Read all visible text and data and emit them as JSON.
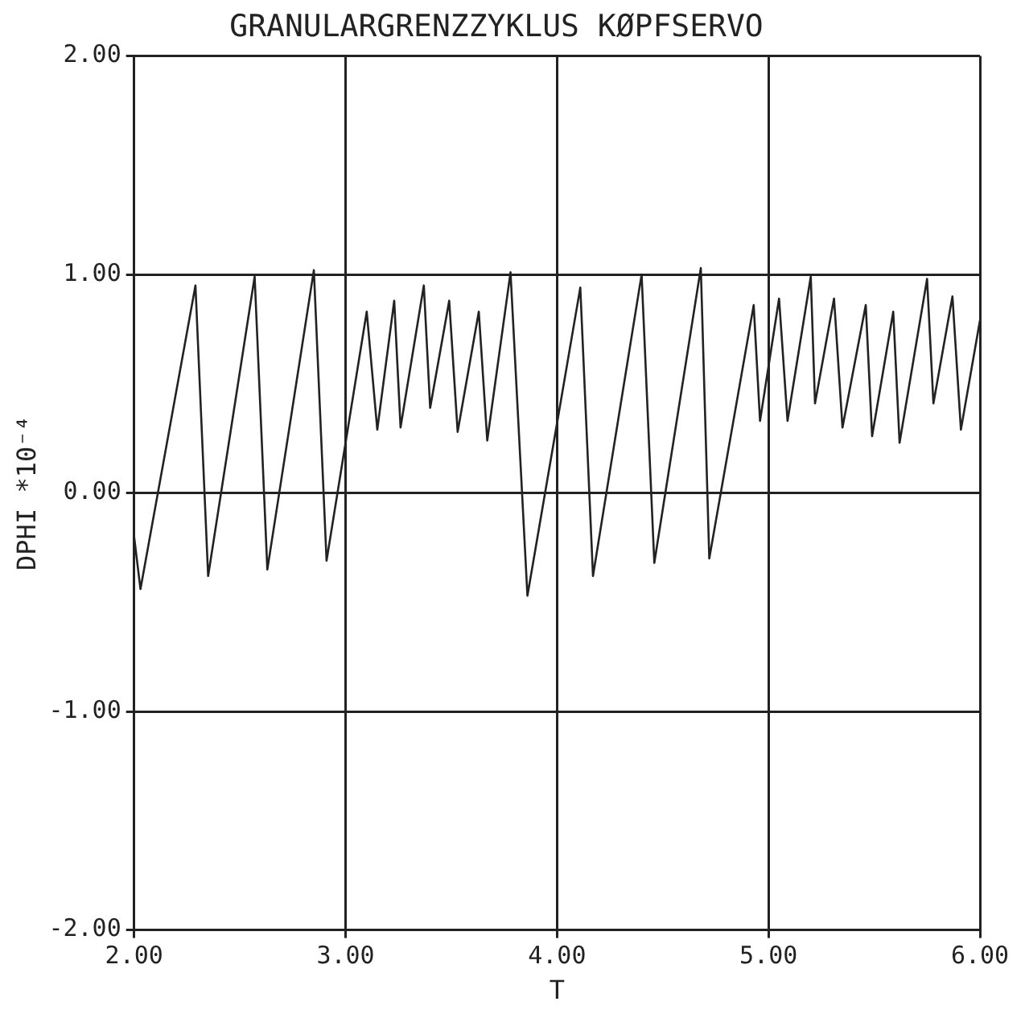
{
  "chart_data": {
    "type": "line",
    "title": "GRANULARGRENZZYKLUS KØPFSERVO",
    "xlabel": "T",
    "ylabel": "DPHI *10⁻⁴",
    "x": [
      2.0,
      2.03,
      2.29,
      2.35,
      2.57,
      2.63,
      2.85,
      2.91,
      3.1,
      3.15,
      3.23,
      3.26,
      3.37,
      3.4,
      3.49,
      3.53,
      3.63,
      3.67,
      3.78,
      3.86,
      4.11,
      4.17,
      4.4,
      4.46,
      4.68,
      4.72,
      4.93,
      4.96,
      5.05,
      5.09,
      5.2,
      5.22,
      5.31,
      5.35,
      5.46,
      5.49,
      5.59,
      5.62,
      5.75,
      5.78,
      5.87,
      5.91,
      6.0
    ],
    "series": [
      {
        "color": "#222222",
        "values": [
          -0.2,
          -0.44,
          0.95,
          -0.38,
          0.99,
          -0.35,
          1.02,
          -0.31,
          0.83,
          0.29,
          0.88,
          0.3,
          0.95,
          0.39,
          0.88,
          0.28,
          0.83,
          0.24,
          1.01,
          -0.47,
          0.94,
          -0.38,
          1.0,
          -0.32,
          1.03,
          -0.3,
          0.86,
          0.33,
          0.89,
          0.33,
          0.99,
          0.41,
          0.89,
          0.3,
          0.86,
          0.26,
          0.83,
          0.23,
          0.98,
          0.41,
          0.9,
          0.29,
          0.79
        ]
      }
    ],
    "xlim": [
      2,
      6
    ],
    "xticks": [
      {
        "value": 2,
        "label": "2.00"
      },
      {
        "value": 3,
        "label": "3.00"
      },
      {
        "value": 4,
        "label": "4.00"
      },
      {
        "value": 5,
        "label": "5.00"
      },
      {
        "value": 6,
        "label": "6.00"
      }
    ],
    "ylim": [
      -2,
      2
    ],
    "yticks": [
      {
        "value": -2,
        "label": "-2.00"
      },
      {
        "value": -1,
        "label": "-1.00"
      },
      {
        "value": 0,
        "label": "0.00"
      },
      {
        "value": 1,
        "label": "1.00"
      },
      {
        "value": 2,
        "label": "2.00"
      }
    ],
    "grid": true,
    "legend": false,
    "marker": "none",
    "line_style": "solid"
  }
}
